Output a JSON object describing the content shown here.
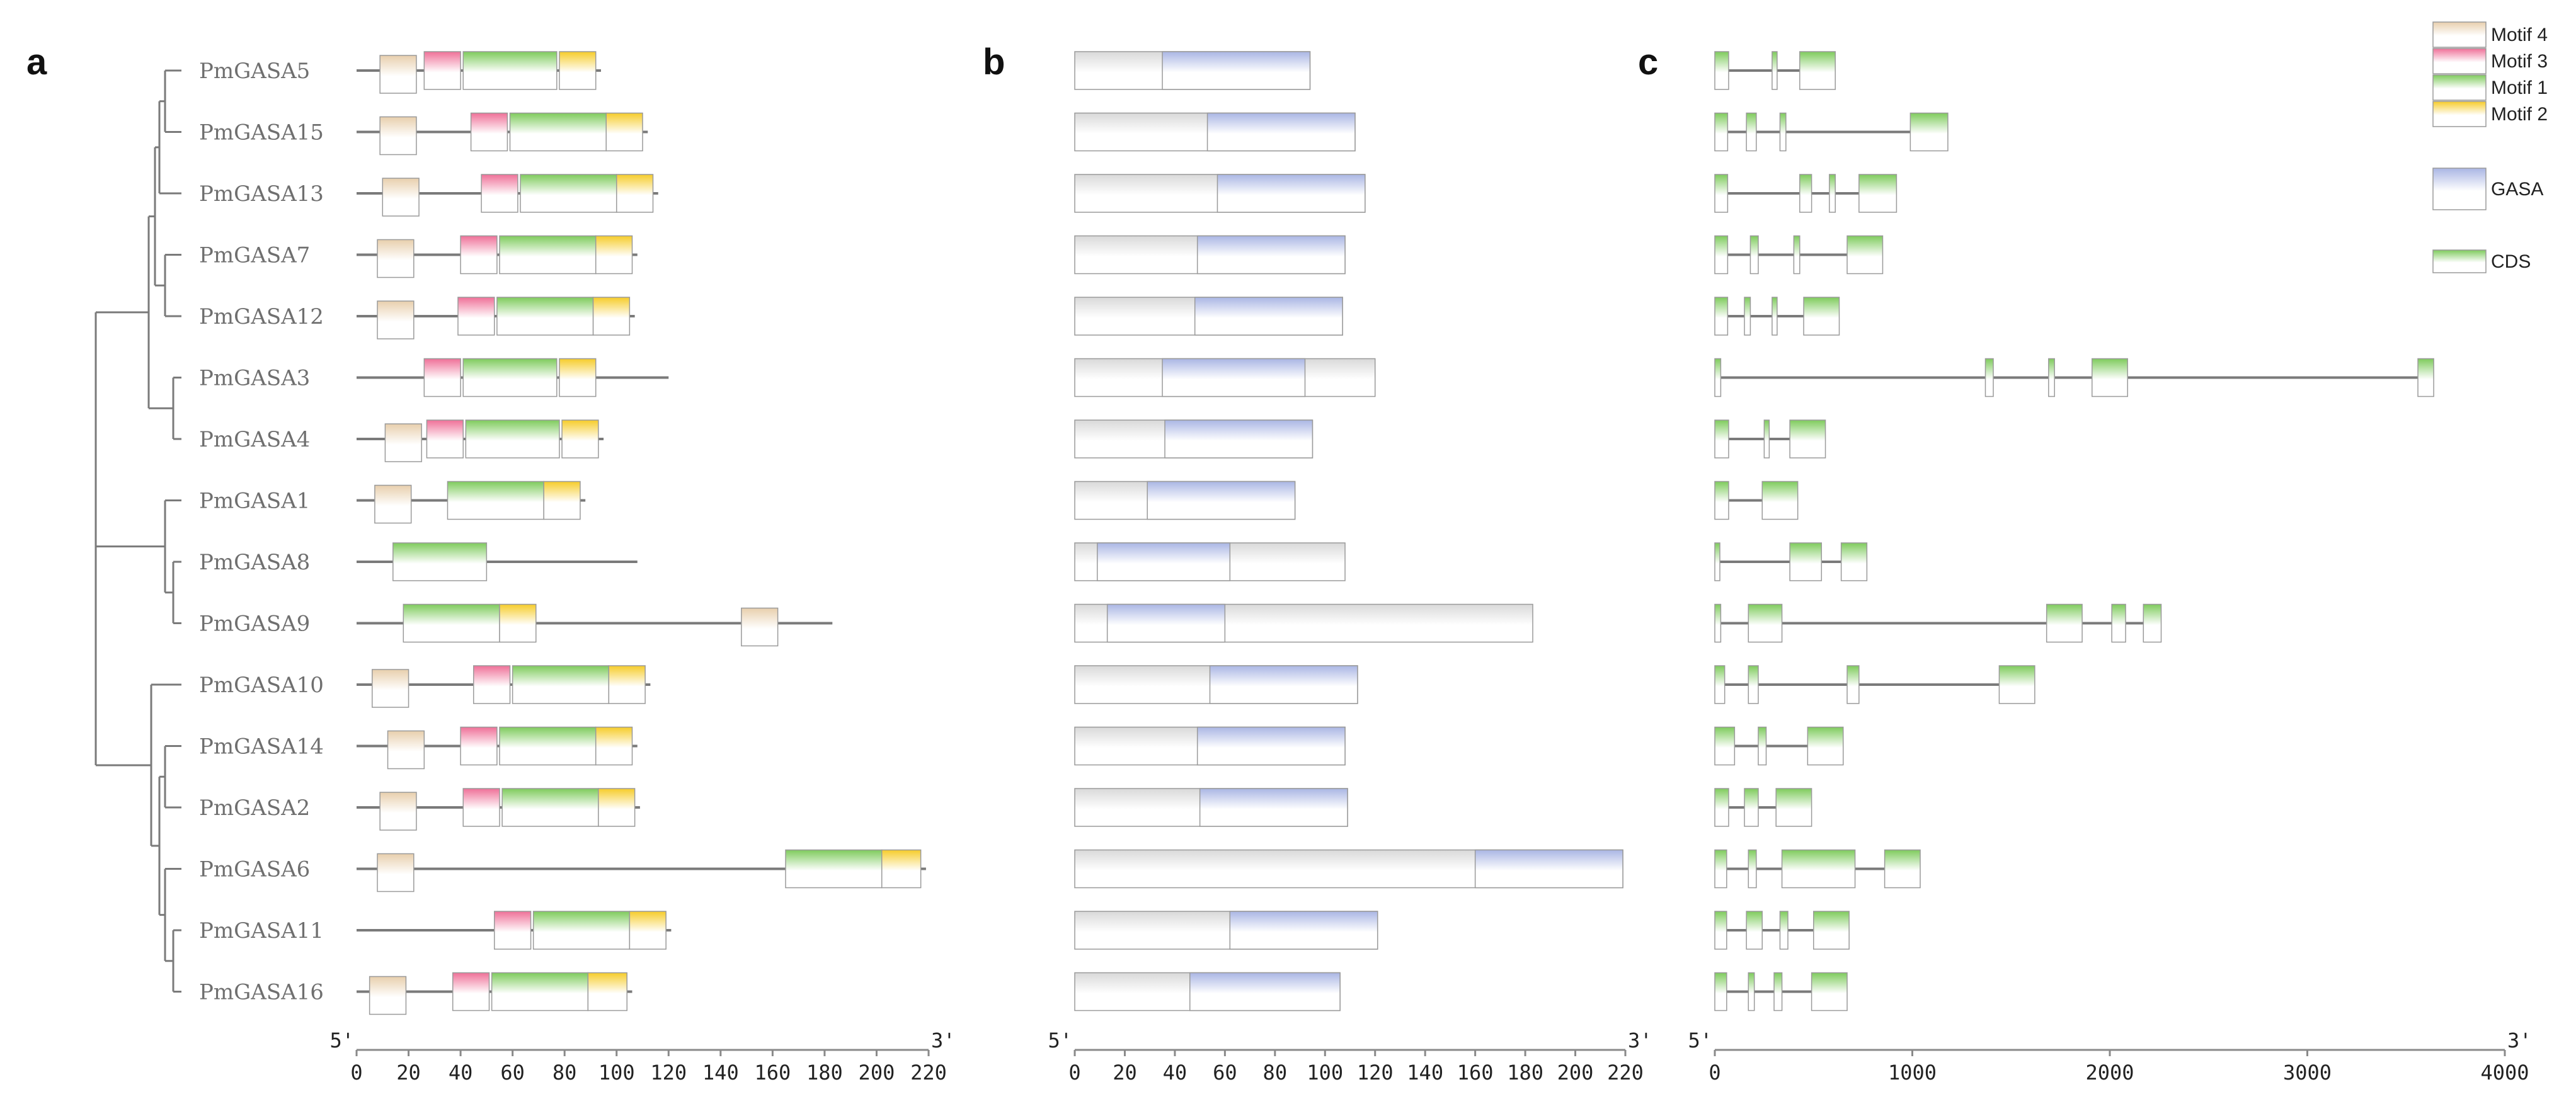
{
  "panels": {
    "a": "a",
    "b": "b",
    "c": "c"
  },
  "genes": [
    "PmGASA5",
    "PmGASA15",
    "PmGASA13",
    "PmGASA7",
    "PmGASA12",
    "PmGASA3",
    "PmGASA4",
    "PmGASA1",
    "PmGASA8",
    "PmGASA9",
    "PmGASA10",
    "PmGASA14",
    "PmGASA2",
    "PmGASA6",
    "PmGASA11",
    "PmGASA16"
  ],
  "colors": {
    "Motif 4": "#e8cfad",
    "Motif 3": "#ef7098",
    "Motif 1": "#7ecb5c",
    "Motif 2": "#f6cc2a",
    "GASA": "#aab6e4",
    "CDS": "#7ecb5c",
    "protein": "#d9d9d9"
  },
  "legend": [
    {
      "label": "Motif 4",
      "key": "Motif 4"
    },
    {
      "label": "Motif 3",
      "key": "Motif 3"
    },
    {
      "label": "Motif 1",
      "key": "Motif 1"
    },
    {
      "label": "Motif 2",
      "key": "Motif 2"
    },
    {
      "label": "GASA",
      "key": "GASA"
    },
    {
      "label": "CDS",
      "key": "CDS"
    }
  ],
  "axes": {
    "a": {
      "min": 0,
      "max": 220,
      "ticks": [
        0,
        20,
        40,
        60,
        80,
        100,
        120,
        140,
        160,
        180,
        200,
        220
      ],
      "start_label": "5'",
      "end_label": "3'"
    },
    "b": {
      "min": 0,
      "max": 220,
      "ticks": [
        0,
        20,
        40,
        60,
        80,
        100,
        120,
        140,
        160,
        180,
        200,
        220
      ],
      "start_label": "5'",
      "end_label": "3'"
    },
    "c": {
      "min": 0,
      "max": 4000,
      "ticks": [
        0,
        1000,
        2000,
        3000,
        4000
      ],
      "start_label": "5'",
      "end_label": "3'"
    }
  },
  "chart_data": {
    "type": "gene structure diagram",
    "motifs": [
      {
        "gene": "PmGASA5",
        "length": 94,
        "motifs": [
          {
            "name": "Motif 4",
            "start": 9,
            "end": 23
          },
          {
            "name": "Motif 3",
            "start": 26,
            "end": 40
          },
          {
            "name": "Motif 1",
            "start": 41,
            "end": 77
          },
          {
            "name": "Motif 2",
            "start": 78,
            "end": 92
          }
        ]
      },
      {
        "gene": "PmGASA15",
        "length": 112,
        "motifs": [
          {
            "name": "Motif 4",
            "start": 9,
            "end": 23
          },
          {
            "name": "Motif 3",
            "start": 44,
            "end": 58
          },
          {
            "name": "Motif 1",
            "start": 59,
            "end": 96
          },
          {
            "name": "Motif 2",
            "start": 96,
            "end": 110
          }
        ]
      },
      {
        "gene": "PmGASA13",
        "length": 116,
        "motifs": [
          {
            "name": "Motif 4",
            "start": 10,
            "end": 24
          },
          {
            "name": "Motif 3",
            "start": 48,
            "end": 62
          },
          {
            "name": "Motif 1",
            "start": 63,
            "end": 100
          },
          {
            "name": "Motif 2",
            "start": 100,
            "end": 114
          }
        ]
      },
      {
        "gene": "PmGASA7",
        "length": 108,
        "motifs": [
          {
            "name": "Motif 4",
            "start": 8,
            "end": 22
          },
          {
            "name": "Motif 3",
            "start": 40,
            "end": 54
          },
          {
            "name": "Motif 1",
            "start": 55,
            "end": 92
          },
          {
            "name": "Motif 2",
            "start": 92,
            "end": 106
          }
        ]
      },
      {
        "gene": "PmGASA12",
        "length": 107,
        "motifs": [
          {
            "name": "Motif 4",
            "start": 8,
            "end": 22
          },
          {
            "name": "Motif 3",
            "start": 39,
            "end": 53
          },
          {
            "name": "Motif 1",
            "start": 54,
            "end": 91
          },
          {
            "name": "Motif 2",
            "start": 91,
            "end": 105
          }
        ]
      },
      {
        "gene": "PmGASA3",
        "length": 120,
        "motifs": [
          {
            "name": "Motif 3",
            "start": 26,
            "end": 40
          },
          {
            "name": "Motif 1",
            "start": 41,
            "end": 77
          },
          {
            "name": "Motif 2",
            "start": 78,
            "end": 92
          }
        ]
      },
      {
        "gene": "PmGASA4",
        "length": 95,
        "motifs": [
          {
            "name": "Motif 4",
            "start": 11,
            "end": 25
          },
          {
            "name": "Motif 3",
            "start": 27,
            "end": 41
          },
          {
            "name": "Motif 1",
            "start": 42,
            "end": 78
          },
          {
            "name": "Motif 2",
            "start": 79,
            "end": 93
          }
        ]
      },
      {
        "gene": "PmGASA1",
        "length": 88,
        "motifs": [
          {
            "name": "Motif 4",
            "start": 7,
            "end": 21
          },
          {
            "name": "Motif 1",
            "start": 35,
            "end": 72
          },
          {
            "name": "Motif 2",
            "start": 72,
            "end": 86
          }
        ]
      },
      {
        "gene": "PmGASA8",
        "length": 108,
        "motifs": [
          {
            "name": "Motif 1",
            "start": 14,
            "end": 50
          }
        ]
      },
      {
        "gene": "PmGASA9",
        "length": 183,
        "motifs": [
          {
            "name": "Motif 1",
            "start": 18,
            "end": 55
          },
          {
            "name": "Motif 2",
            "start": 55,
            "end": 69
          },
          {
            "name": "Motif 4",
            "start": 148,
            "end": 162
          }
        ]
      },
      {
        "gene": "PmGASA10",
        "length": 113,
        "motifs": [
          {
            "name": "Motif 4",
            "start": 6,
            "end": 20
          },
          {
            "name": "Motif 3",
            "start": 45,
            "end": 59
          },
          {
            "name": "Motif 1",
            "start": 60,
            "end": 97
          },
          {
            "name": "Motif 2",
            "start": 97,
            "end": 111
          }
        ]
      },
      {
        "gene": "PmGASA14",
        "length": 108,
        "motifs": [
          {
            "name": "Motif 4",
            "start": 12,
            "end": 26
          },
          {
            "name": "Motif 3",
            "start": 40,
            "end": 54
          },
          {
            "name": "Motif 1",
            "start": 55,
            "end": 92
          },
          {
            "name": "Motif 2",
            "start": 92,
            "end": 106
          }
        ]
      },
      {
        "gene": "PmGASA2",
        "length": 109,
        "motifs": [
          {
            "name": "Motif 4",
            "start": 9,
            "end": 23
          },
          {
            "name": "Motif 3",
            "start": 41,
            "end": 55
          },
          {
            "name": "Motif 1",
            "start": 56,
            "end": 93
          },
          {
            "name": "Motif 2",
            "start": 93,
            "end": 107
          }
        ]
      },
      {
        "gene": "PmGASA6",
        "length": 219,
        "motifs": [
          {
            "name": "Motif 4",
            "start": 8,
            "end": 22
          },
          {
            "name": "Motif 1",
            "start": 165,
            "end": 202
          },
          {
            "name": "Motif 2",
            "start": 202,
            "end": 217
          }
        ]
      },
      {
        "gene": "PmGASA11",
        "length": 121,
        "motifs": [
          {
            "name": "Motif 3",
            "start": 53,
            "end": 67
          },
          {
            "name": "Motif 1",
            "start": 68,
            "end": 105
          },
          {
            "name": "Motif 2",
            "start": 105,
            "end": 119
          }
        ]
      },
      {
        "gene": "PmGASA16",
        "length": 106,
        "motifs": [
          {
            "name": "Motif 4",
            "start": 5,
            "end": 19
          },
          {
            "name": "Motif 3",
            "start": 37,
            "end": 51
          },
          {
            "name": "Motif 1",
            "start": 52,
            "end": 89
          },
          {
            "name": "Motif 2",
            "start": 89,
            "end": 104
          }
        ]
      }
    ],
    "domains": [
      {
        "gene": "PmGASA5",
        "length": 94,
        "gasa": [
          35,
          94
        ]
      },
      {
        "gene": "PmGASA15",
        "length": 112,
        "gasa": [
          53,
          112
        ]
      },
      {
        "gene": "PmGASA13",
        "length": 116,
        "gasa": [
          57,
          116
        ]
      },
      {
        "gene": "PmGASA7",
        "length": 108,
        "gasa": [
          49,
          108
        ]
      },
      {
        "gene": "PmGASA12",
        "length": 107,
        "gasa": [
          48,
          107
        ]
      },
      {
        "gene": "PmGASA3",
        "length": 120,
        "gasa": [
          35,
          92
        ]
      },
      {
        "gene": "PmGASA4",
        "length": 95,
        "gasa": [
          36,
          95
        ]
      },
      {
        "gene": "PmGASA1",
        "length": 88,
        "gasa": [
          29,
          88
        ]
      },
      {
        "gene": "PmGASA8",
        "length": 108,
        "gasa": [
          9,
          62
        ]
      },
      {
        "gene": "PmGASA9",
        "length": 183,
        "gasa": [
          13,
          60
        ]
      },
      {
        "gene": "PmGASA10",
        "length": 113,
        "gasa": [
          54,
          113
        ]
      },
      {
        "gene": "PmGASA14",
        "length": 108,
        "gasa": [
          49,
          108
        ]
      },
      {
        "gene": "PmGASA2",
        "length": 109,
        "gasa": [
          50,
          109
        ]
      },
      {
        "gene": "PmGASA6",
        "length": 219,
        "gasa": [
          160,
          219
        ]
      },
      {
        "gene": "PmGASA11",
        "length": 121,
        "gasa": [
          62,
          121
        ]
      },
      {
        "gene": "PmGASA16",
        "length": 106,
        "gasa": [
          46,
          106
        ]
      }
    ],
    "structures": [
      {
        "gene": "PmGASA5",
        "length": 610,
        "cds": [
          [
            0,
            70
          ],
          [
            290,
            310
          ],
          [
            430,
            610
          ]
        ]
      },
      {
        "gene": "PmGASA15",
        "length": 1180,
        "cds": [
          [
            0,
            65
          ],
          [
            160,
            210
          ],
          [
            330,
            360
          ],
          [
            990,
            1180
          ]
        ]
      },
      {
        "gene": "PmGASA13",
        "length": 920,
        "cds": [
          [
            0,
            65
          ],
          [
            430,
            490
          ],
          [
            580,
            610
          ],
          [
            730,
            920
          ]
        ]
      },
      {
        "gene": "PmGASA7",
        "length": 850,
        "cds": [
          [
            0,
            65
          ],
          [
            180,
            220
          ],
          [
            400,
            430
          ],
          [
            670,
            850
          ]
        ]
      },
      {
        "gene": "PmGASA12",
        "length": 630,
        "cds": [
          [
            0,
            65
          ],
          [
            150,
            180
          ],
          [
            290,
            310
          ],
          [
            450,
            630
          ]
        ]
      },
      {
        "gene": "PmGASA3",
        "length": 3640,
        "cds": [
          [
            0,
            30
          ],
          [
            1370,
            1410
          ],
          [
            1690,
            1720
          ],
          [
            1910,
            2090
          ],
          [
            3560,
            3640
          ]
        ]
      },
      {
        "gene": "PmGASA4",
        "length": 560,
        "cds": [
          [
            0,
            70
          ],
          [
            250,
            270
          ],
          [
            380,
            560
          ]
        ]
      },
      {
        "gene": "PmGASA1",
        "length": 420,
        "cds": [
          [
            0,
            70
          ],
          [
            240,
            420
          ]
        ]
      },
      {
        "gene": "PmGASA8",
        "length": 770,
        "cds": [
          [
            0,
            20
          ],
          [
            380,
            540
          ],
          [
            640,
            770
          ]
        ]
      },
      {
        "gene": "PmGASA9",
        "length": 2260,
        "cds": [
          [
            0,
            30
          ],
          [
            170,
            340
          ],
          [
            1680,
            1860
          ],
          [
            2010,
            2080
          ],
          [
            2170,
            2260
          ]
        ]
      },
      {
        "gene": "PmGASA10",
        "length": 1620,
        "cds": [
          [
            0,
            50
          ],
          [
            170,
            220
          ],
          [
            670,
            730
          ],
          [
            1440,
            1620
          ]
        ]
      },
      {
        "gene": "PmGASA14",
        "length": 650,
        "cds": [
          [
            0,
            100
          ],
          [
            220,
            260
          ],
          [
            470,
            650
          ]
        ]
      },
      {
        "gene": "PmGASA2",
        "length": 490,
        "cds": [
          [
            0,
            70
          ],
          [
            150,
            220
          ],
          [
            310,
            490
          ]
        ]
      },
      {
        "gene": "PmGASA6",
        "length": 1040,
        "cds": [
          [
            0,
            60
          ],
          [
            170,
            210
          ],
          [
            340,
            710
          ],
          [
            860,
            1040
          ]
        ]
      },
      {
        "gene": "PmGASA11",
        "length": 680,
        "cds": [
          [
            0,
            60
          ],
          [
            160,
            240
          ],
          [
            330,
            370
          ],
          [
            500,
            680
          ]
        ]
      },
      {
        "gene": "PmGASA16",
        "length": 670,
        "cds": [
          [
            0,
            60
          ],
          [
            170,
            200
          ],
          [
            300,
            340
          ],
          [
            490,
            670
          ]
        ]
      }
    ]
  }
}
